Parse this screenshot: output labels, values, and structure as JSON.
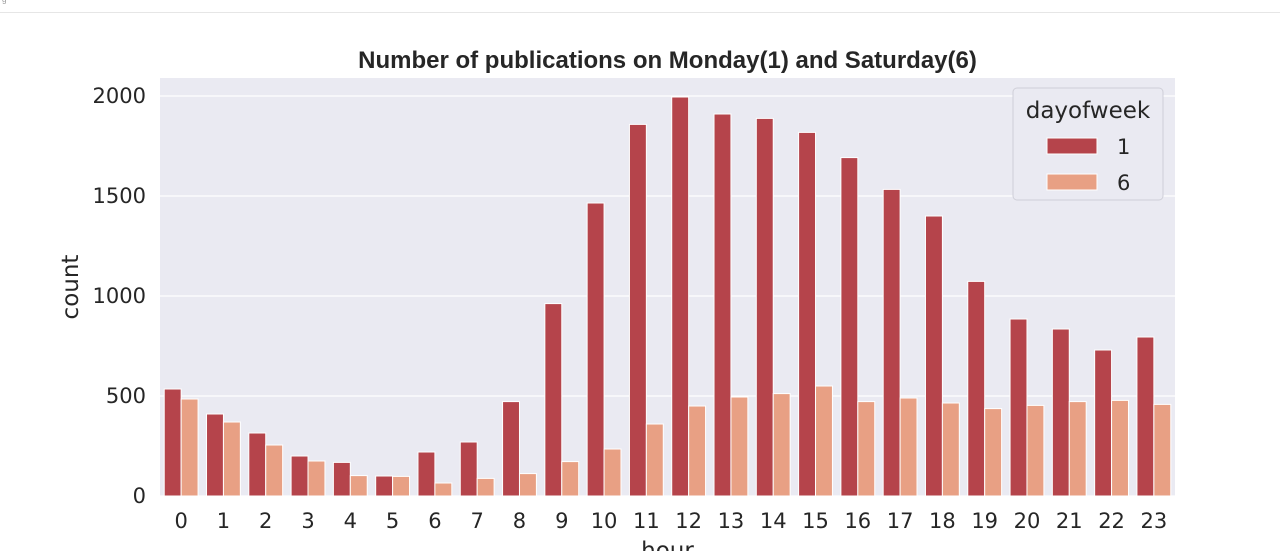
{
  "chart_data": {
    "type": "bar",
    "title": "Number of publications on Monday(1) and Saturday(6)",
    "xlabel": "hour",
    "ylabel": "count",
    "ylim": [
      0,
      2090
    ],
    "yticks": [
      0,
      500,
      1000,
      1500,
      2000
    ],
    "categories": [
      "0",
      "1",
      "2",
      "3",
      "4",
      "5",
      "6",
      "7",
      "8",
      "9",
      "10",
      "11",
      "12",
      "13",
      "14",
      "15",
      "16",
      "17",
      "18",
      "19",
      "20",
      "21",
      "22",
      "23"
    ],
    "legend": {
      "title": "dayofweek",
      "position": "top-right"
    },
    "grid": true,
    "series": [
      {
        "name": "1",
        "color": "#b5444b",
        "values": [
          535,
          410,
          315,
          200,
          168,
          100,
          220,
          270,
          472,
          962,
          1465,
          1858,
          1995,
          1910,
          1888,
          1818,
          1692,
          1533,
          1400,
          1073,
          885,
          835,
          730,
          795
        ]
      },
      {
        "name": "6",
        "color": "#e8a084",
        "values": [
          485,
          370,
          255,
          175,
          102,
          98,
          65,
          88,
          112,
          172,
          235,
          360,
          450,
          495,
          512,
          550,
          472,
          490,
          465,
          437,
          453,
          472,
          478,
          458
        ]
      }
    ]
  }
}
